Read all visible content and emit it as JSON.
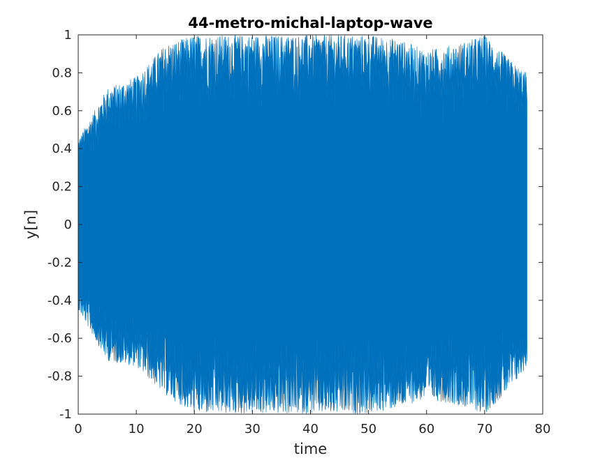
{
  "chart_data": {
    "type": "line",
    "title": "44-metro-michal-laptop-wave",
    "xlabel": "time",
    "ylabel": "y[n]",
    "xlim": [
      0,
      80
    ],
    "ylim": [
      -1,
      1
    ],
    "xticks": [
      0,
      10,
      20,
      30,
      40,
      50,
      60,
      70,
      80
    ],
    "xtick_labels": [
      "0",
      "10",
      "20",
      "30",
      "40",
      "50",
      "60",
      "70",
      "80"
    ],
    "yticks": [
      1,
      0.8,
      0.6,
      0.4,
      0.2,
      0,
      -0.2,
      -0.4,
      -0.6,
      -0.8,
      -1
    ],
    "ytick_labels": [
      "1",
      "0.8",
      "0.6",
      "0.4",
      "0.2",
      "0",
      "-0.2",
      "-0.4",
      "-0.6",
      "-0.8",
      "-1"
    ],
    "grid": false,
    "line_color": "#0072BD",
    "series": [
      {
        "x": [
          0,
          5,
          10,
          15,
          20,
          25,
          30,
          35,
          40,
          45,
          50,
          55,
          60,
          65,
          70,
          75,
          77.3
        ],
        "y_max": [
          0.45,
          0.72,
          0.78,
          0.95,
          1.0,
          1.0,
          1.0,
          1.0,
          1.0,
          1.0,
          1.0,
          0.98,
          0.92,
          0.95,
          1.0,
          0.85,
          0.8
        ],
        "y_min": [
          -0.45,
          -0.72,
          -0.75,
          -0.9,
          -1.0,
          -1.0,
          -1.0,
          -1.0,
          -1.0,
          -1.0,
          -1.0,
          -0.97,
          -0.92,
          -0.95,
          -1.0,
          -0.85,
          -0.75
        ]
      }
    ]
  }
}
